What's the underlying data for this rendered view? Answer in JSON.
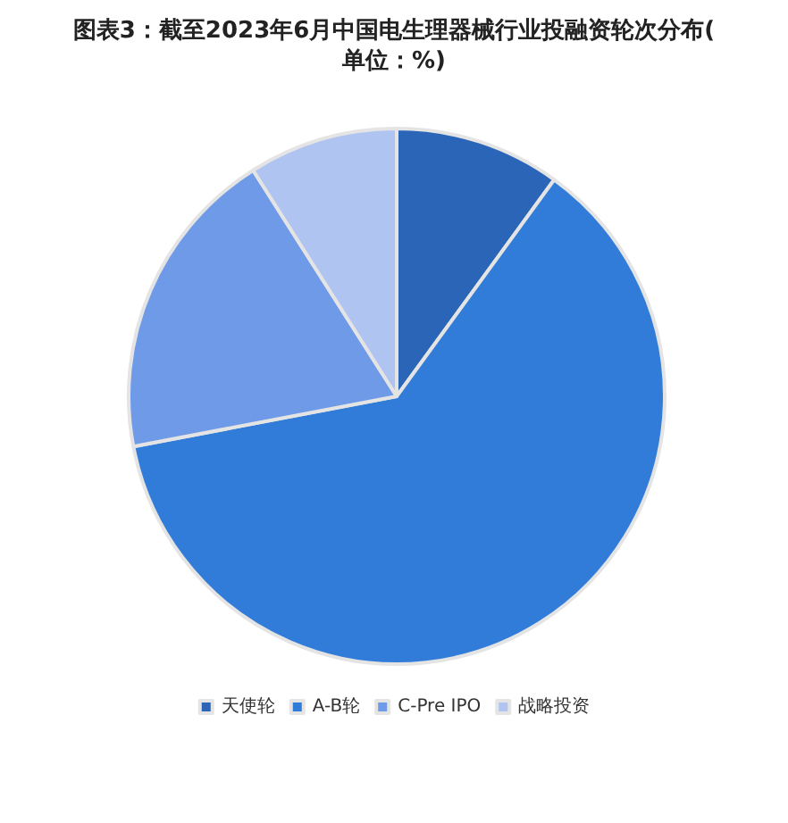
{
  "chart_data": {
    "type": "pie",
    "title": "图表3：截至2023年6月中国电生理器械行业投融资轮次分布(单位：%)",
    "categories": [
      "天使轮",
      "A-B轮",
      "C-Pre IPO",
      "战略投资"
    ],
    "values": [
      10,
      62,
      19,
      9
    ],
    "colors": [
      "#2a65b8",
      "#317cd9",
      "#6f9ae8",
      "#b0c4f2"
    ],
    "legend": "bottom"
  }
}
